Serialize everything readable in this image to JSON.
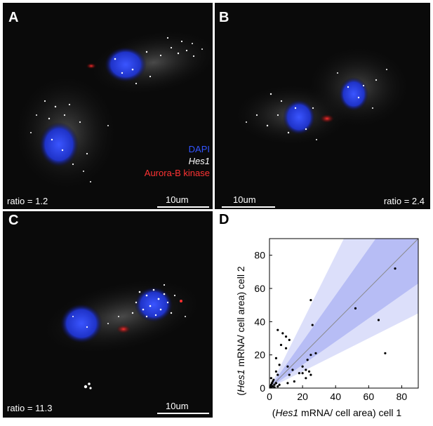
{
  "panels": {
    "A": {
      "label": "A",
      "ratio": "ratio = 1.2",
      "scalebar": "10um"
    },
    "B": {
      "label": "B",
      "ratio": "ratio = 2.4",
      "scalebar": "10um"
    },
    "C": {
      "label": "C",
      "ratio": "ratio = 11.3",
      "scalebar": "10um"
    },
    "D": {
      "label": "D"
    }
  },
  "legend": {
    "dapi": "DAPI",
    "hes1": "Hes1",
    "aurora": "Aurora-B kinase",
    "colors": {
      "dapi": "#2f4fff",
      "hes1": "#ffffff",
      "aurora": "#ff2a2a"
    }
  },
  "chart_data": {
    "type": "scatter",
    "title": "",
    "xlabel": "(Hes1 mRNA/ cell area) cell 1",
    "ylabel": "(Hes1 mRNA/ cell area) cell 2",
    "xlabel_italic": "Hes1",
    "xlabel_pre": "(",
    "xlabel_post": " mRNA/ cell area) cell 1",
    "ylabel_pre": "(",
    "ylabel_italic": "Hes1",
    "ylabel_post": " mRNA/ cell area) cell 2",
    "xlim": [
      0,
      90
    ],
    "ylim": [
      0,
      90
    ],
    "xticks": [
      0,
      20,
      40,
      60,
      80
    ],
    "yticks": [
      0,
      20,
      40,
      60,
      80
    ],
    "diagonal": true,
    "band_inner_slopes": [
      0.7,
      1.4
    ],
    "band_outer_slopes": [
      0.5,
      2.0
    ],
    "band_colors": {
      "inner": "#b7bdf5",
      "outer": "#dcdffa"
    },
    "points": [
      [
        0.5,
        1
      ],
      [
        1,
        2
      ],
      [
        1,
        0.5
      ],
      [
        1.5,
        3
      ],
      [
        2,
        1
      ],
      [
        2,
        4
      ],
      [
        3,
        2
      ],
      [
        3,
        0.5
      ],
      [
        2.5,
        5
      ],
      [
        1,
        6
      ],
      [
        4,
        3
      ],
      [
        5,
        1
      ],
      [
        6,
        2
      ],
      [
        5,
        8
      ],
      [
        4,
        10
      ],
      [
        6,
        14
      ],
      [
        4,
        18
      ],
      [
        7,
        26
      ],
      [
        5,
        35
      ],
      [
        8,
        33
      ],
      [
        10,
        31
      ],
      [
        10,
        24
      ],
      [
        12,
        29
      ],
      [
        11,
        13
      ],
      [
        14,
        11
      ],
      [
        11,
        3
      ],
      [
        12,
        8
      ],
      [
        15,
        4
      ],
      [
        18,
        9
      ],
      [
        20,
        13
      ],
      [
        20,
        9
      ],
      [
        22,
        11
      ],
      [
        24,
        10
      ],
      [
        22,
        6
      ],
      [
        25,
        8
      ],
      [
        23,
        17
      ],
      [
        25,
        20
      ],
      [
        28,
        21
      ],
      [
        26,
        38
      ],
      [
        25,
        53
      ],
      [
        52,
        48
      ],
      [
        66,
        41
      ],
      [
        70,
        21
      ],
      [
        76,
        72
      ]
    ]
  }
}
